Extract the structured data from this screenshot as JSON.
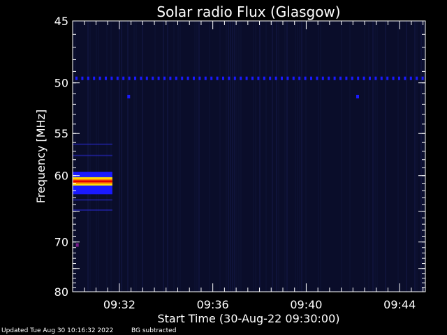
{
  "chart_data": {
    "type": "heatmap",
    "title": "Solar radio Flux (Glasgow)",
    "xlabel": "Start Time (30-Aug-22 09:30:00)",
    "ylabel": "Frequency [MHz]",
    "x_ticks": [
      "09:32",
      "09:36",
      "09:40",
      "09:44"
    ],
    "x_tick_minutes": [
      2,
      6,
      10,
      14
    ],
    "x_range_minutes": [
      0,
      15.1
    ],
    "y_ticks": [
      45,
      50,
      55,
      60,
      70,
      80
    ],
    "y_ticks_unlabeled": [
      65,
      75
    ],
    "y_range": [
      45,
      80
    ],
    "y_scale": "reciprocal",
    "colors": {
      "background": "#000000",
      "axes": "#ffffff",
      "dark_blue": "#0a0d2a",
      "blue": "#1a1aff",
      "yellow": "#ffe000",
      "orange": "#ff7a00",
      "red": "#e00000",
      "purple": "#7a1a8a"
    },
    "features": {
      "hot_band_mhz": [
        60.2,
        61.3
      ],
      "hot_band_minutes": [
        0,
        1.7
      ],
      "blue_halo_mhz": [
        59.5,
        62.5
      ],
      "interference_line_mhz": 49.6,
      "spots": [
        {
          "minute": 2.4,
          "mhz": 51.3
        },
        {
          "minute": 12.2,
          "mhz": 51.3
        },
        {
          "minute": 0.2,
          "mhz": 70.6
        }
      ]
    }
  },
  "footer": {
    "updated": "Updated Tue Aug 30 10:16:32 2022",
    "bg_note": "BG subtracted"
  }
}
